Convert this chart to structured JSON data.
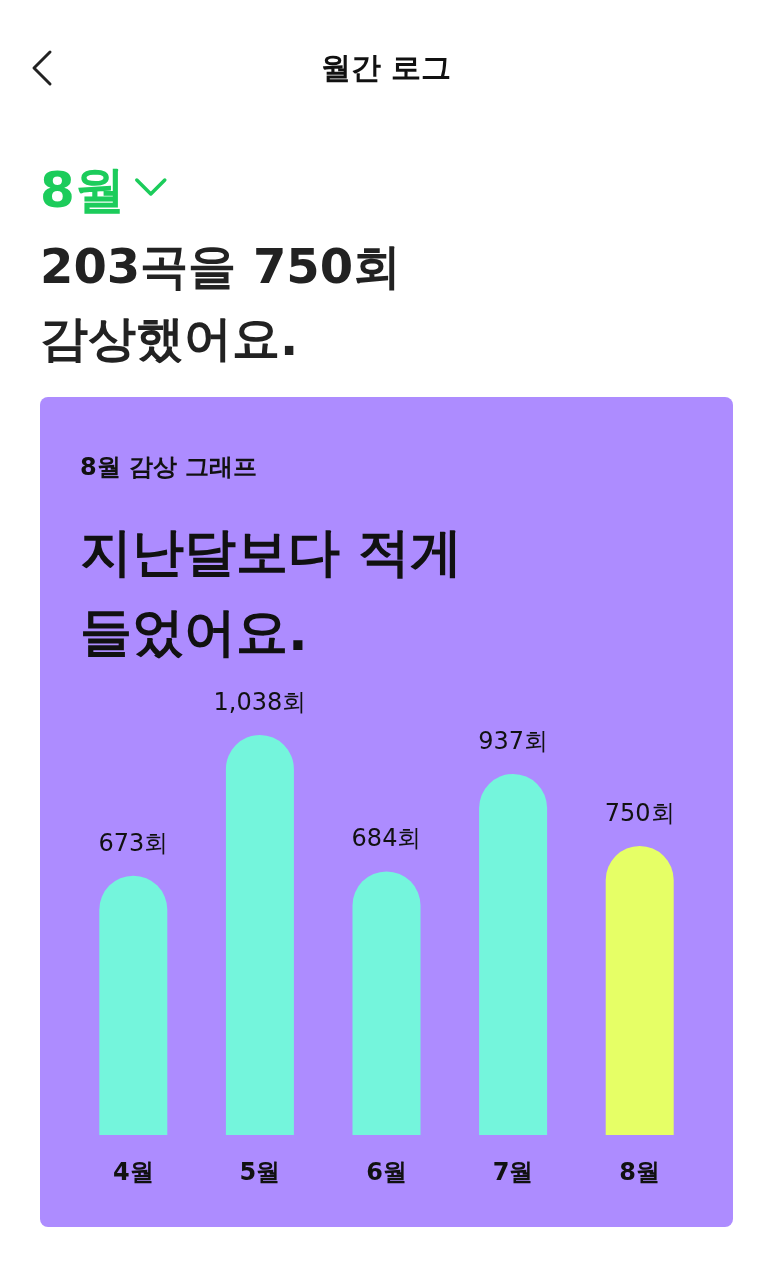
{
  "chart_data": {
    "type": "bar",
    "title": "지난달보다 적게 들었어요.",
    "subtitle": "8월 감상 그래프",
    "annotations": [
      "월간 로그",
      "8월",
      "203곡을 750회 감상했어요."
    ],
    "categories": [
      "4월",
      "5월",
      "6월",
      "7월",
      "8월"
    ],
    "values": [
      673,
      1038,
      684,
      937,
      750
    ],
    "colors": [
      "#74f5dc",
      "#74f5dc",
      "#74f5dc",
      "#74f5dc",
      "#e6ff66"
    ],
    "value_labels": [
      "673회",
      "1,038회",
      "684회",
      "937회",
      "750회"
    ]
  }
}
